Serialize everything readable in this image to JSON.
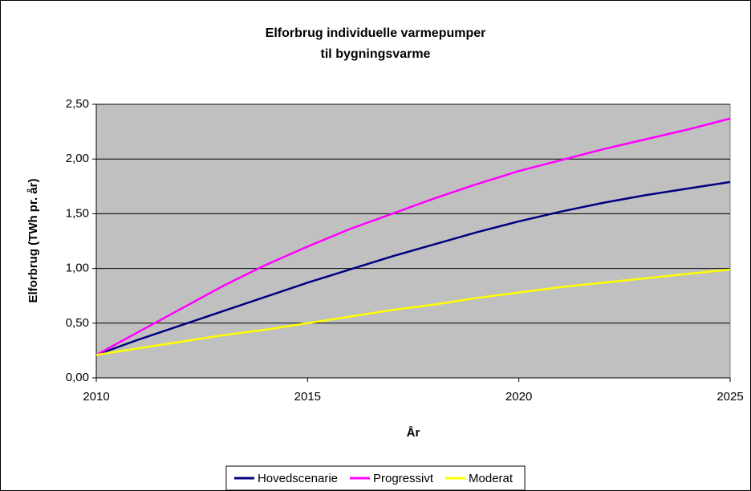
{
  "chart_data": {
    "type": "line",
    "title": [
      "Elforbrug individuelle varmepumper",
      "til bygningsvarme"
    ],
    "x_label": "År",
    "y_label": "Elforbrug (TWh pr. år)",
    "x": [
      2010,
      2011,
      2012,
      2013,
      2014,
      2015,
      2016,
      2017,
      2018,
      2019,
      2020,
      2021,
      2022,
      2023,
      2024,
      2025
    ],
    "xlim": [
      2010,
      2025
    ],
    "xticks": [
      2010,
      2015,
      2020,
      2025
    ],
    "ylim": [
      0,
      2.5
    ],
    "yticks": [
      {
        "value": 0,
        "label": "0,00"
      },
      {
        "value": 0.5,
        "label": "0,50"
      },
      {
        "value": 1,
        "label": "1,00"
      },
      {
        "value": 1.5,
        "label": "1,50"
      },
      {
        "value": 2,
        "label": "2,00"
      },
      {
        "value": 2.5,
        "label": "2,50"
      }
    ],
    "grid": true,
    "legend": "bottom",
    "series": [
      {
        "name": "Hovedscenarie",
        "color": "#000080",
        "values": [
          0.21,
          0.35,
          0.48,
          0.61,
          0.74,
          0.87,
          0.99,
          1.11,
          1.22,
          1.33,
          1.43,
          1.52,
          1.6,
          1.67,
          1.73,
          1.79
        ]
      },
      {
        "name": "Progressivt",
        "color": "#ff00ff",
        "values": [
          0.21,
          0.42,
          0.63,
          0.84,
          1.03,
          1.2,
          1.36,
          1.5,
          1.64,
          1.77,
          1.89,
          1.99,
          2.09,
          2.18,
          2.27,
          2.37
        ]
      },
      {
        "name": "Moderat",
        "color": "#ffff00",
        "values": [
          0.21,
          0.27,
          0.33,
          0.39,
          0.44,
          0.5,
          0.56,
          0.62,
          0.67,
          0.73,
          0.78,
          0.83,
          0.87,
          0.91,
          0.95,
          0.99
        ]
      }
    ]
  }
}
